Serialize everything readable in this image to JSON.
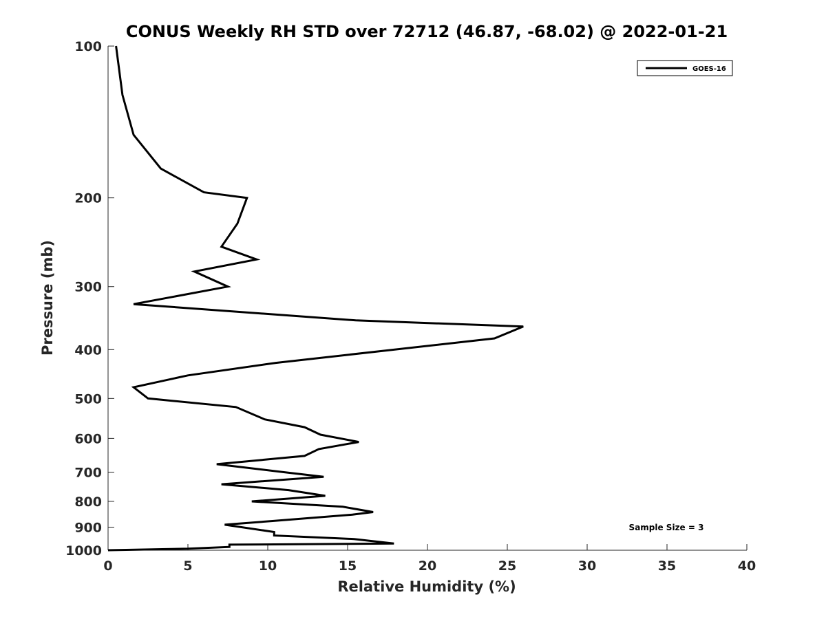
{
  "chart_data": {
    "type": "line",
    "title": "CONUS Weekly RH STD over 72712 (46.87, -68.02) @ 2022-01-21",
    "xlabel": "Relative Humidity (%)",
    "ylabel": "Pressure (mb)",
    "xlim": [
      0,
      40
    ],
    "ylim": [
      100,
      1000
    ],
    "y_scale": "log",
    "y_reversed": true,
    "x_ticks": [
      0,
      5,
      10,
      15,
      20,
      25,
      30,
      35,
      40
    ],
    "y_ticks": [
      100,
      200,
      300,
      400,
      500,
      600,
      700,
      800,
      900,
      1000
    ],
    "grid": false,
    "legend_position": "top-right",
    "annotation": "Sample Size = 3",
    "series": [
      {
        "name": "GOES-16",
        "color": "#000000",
        "points": [
          [
            0.5,
            100
          ],
          [
            0.9,
            125
          ],
          [
            1.6,
            150
          ],
          [
            3.3,
            175
          ],
          [
            6.0,
            195
          ],
          [
            8.7,
            200
          ],
          [
            8.1,
            225
          ],
          [
            7.1,
            250
          ],
          [
            9.3,
            265
          ],
          [
            5.4,
            280
          ],
          [
            7.5,
            300
          ],
          [
            1.6,
            325
          ],
          [
            15.5,
            350
          ],
          [
            26.0,
            360
          ],
          [
            24.2,
            380
          ],
          [
            10.5,
            425
          ],
          [
            5.0,
            450
          ],
          [
            1.6,
            475
          ],
          [
            2.5,
            500
          ],
          [
            8.0,
            520
          ],
          [
            9.8,
            550
          ],
          [
            12.3,
            570
          ],
          [
            13.3,
            590
          ],
          [
            15.7,
            610
          ],
          [
            13.2,
            630
          ],
          [
            12.3,
            650
          ],
          [
            6.8,
            675
          ],
          [
            11.0,
            700
          ],
          [
            13.5,
            715
          ],
          [
            7.1,
            740
          ],
          [
            11.3,
            760
          ],
          [
            13.6,
            780
          ],
          [
            9.0,
            800
          ],
          [
            14.7,
            820
          ],
          [
            16.6,
            840
          ],
          [
            15.3,
            850
          ],
          [
            10.3,
            875
          ],
          [
            7.3,
            890
          ],
          [
            10.4,
            920
          ],
          [
            10.4,
            935
          ],
          [
            15.4,
            950
          ],
          [
            17.9,
            970
          ],
          [
            7.6,
            975
          ],
          [
            7.6,
            985
          ],
          [
            5.0,
            993
          ],
          [
            0.0,
            1000
          ]
        ]
      }
    ]
  }
}
